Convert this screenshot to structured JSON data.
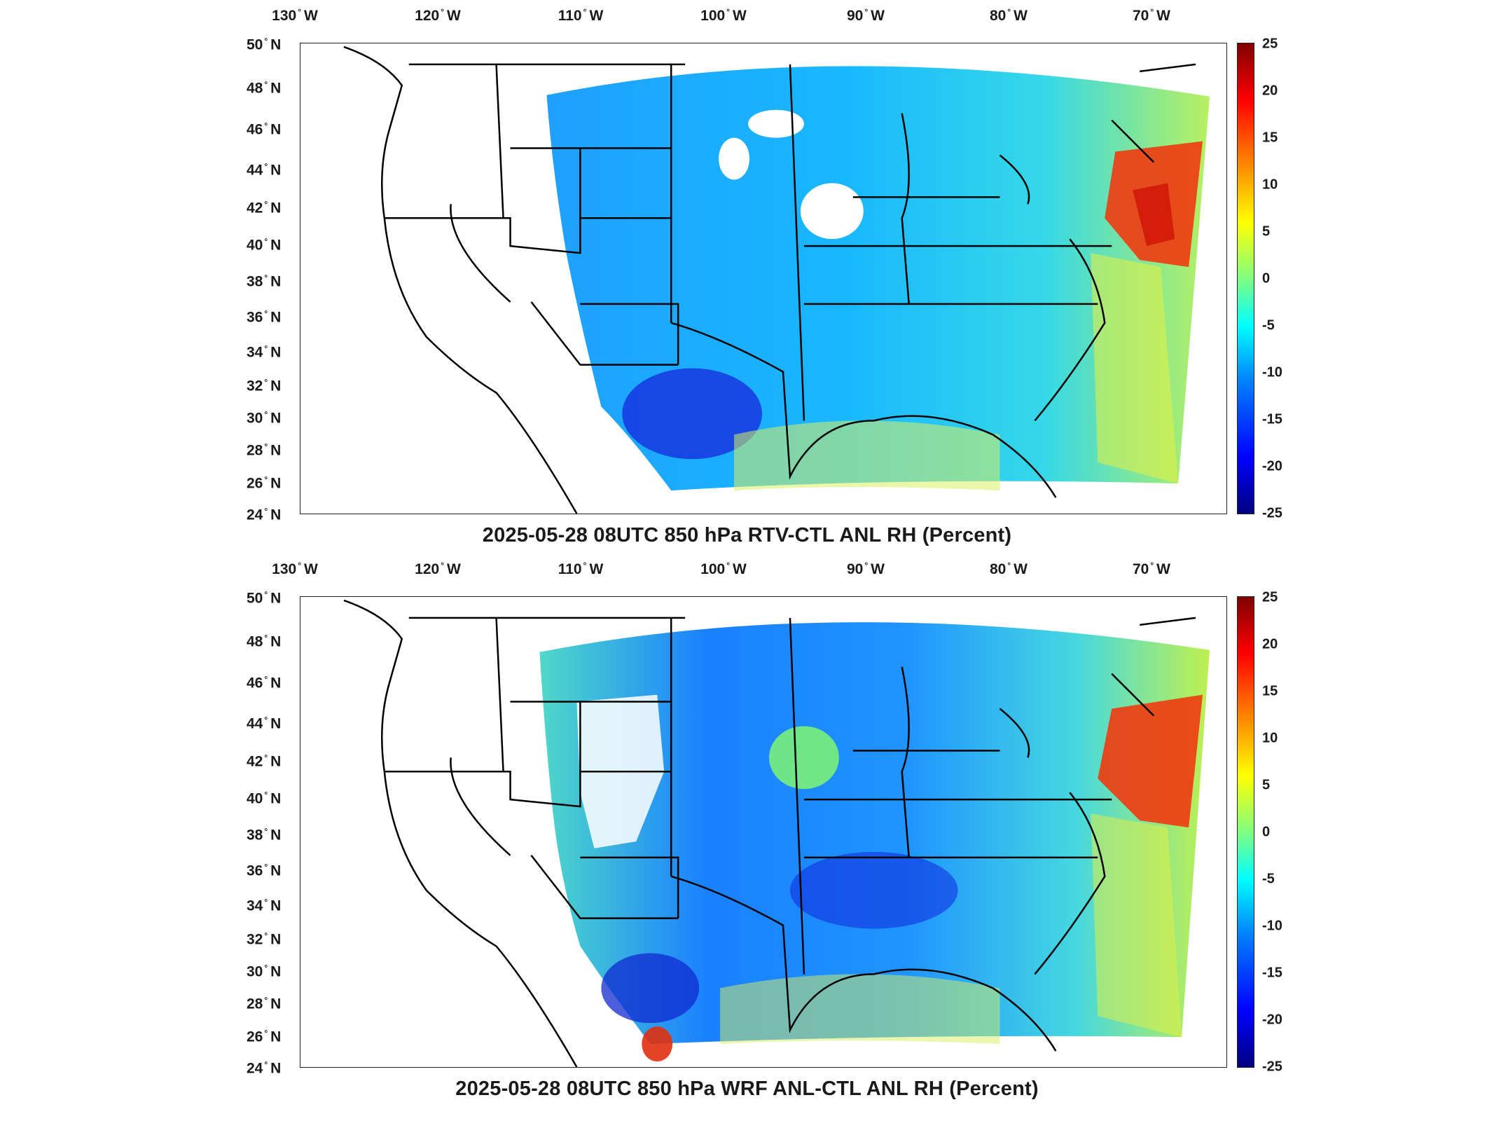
{
  "lon_labels": [
    {
      "deg": "130",
      "hemi": "W"
    },
    {
      "deg": "120",
      "hemi": "W"
    },
    {
      "deg": "110",
      "hemi": "W"
    },
    {
      "deg": "100",
      "hemi": "W"
    },
    {
      "deg": "90",
      "hemi": "W"
    },
    {
      "deg": "80",
      "hemi": "W"
    },
    {
      "deg": "70",
      "hemi": "W"
    }
  ],
  "lat_labels": [
    {
      "deg": "50",
      "hemi": "N"
    },
    {
      "deg": "48",
      "hemi": "N"
    },
    {
      "deg": "46",
      "hemi": "N"
    },
    {
      "deg": "44",
      "hemi": "N"
    },
    {
      "deg": "42",
      "hemi": "N"
    },
    {
      "deg": "40",
      "hemi": "N"
    },
    {
      "deg": "38",
      "hemi": "N"
    },
    {
      "deg": "36",
      "hemi": "N"
    },
    {
      "deg": "34",
      "hemi": "N"
    },
    {
      "deg": "32",
      "hemi": "N"
    },
    {
      "deg": "30",
      "hemi": "N"
    },
    {
      "deg": "28",
      "hemi": "N"
    },
    {
      "deg": "26",
      "hemi": "N"
    },
    {
      "deg": "24",
      "hemi": "N"
    }
  ],
  "colorbar_ticks": [
    "25",
    "20",
    "15",
    "10",
    "5",
    "0",
    "-5",
    "-10",
    "-15",
    "-20",
    "-25"
  ],
  "colors": {
    "cmap": [
      "#000080",
      "#0000ff",
      "#0080ff",
      "#00ffff",
      "#80ff80",
      "#ffff00",
      "#ff8000",
      "#ff0000",
      "#800000"
    ]
  },
  "panels": [
    {
      "title": "2025-05-28 08UTC 850 hPa RTV-CTL ANL RH (Percent)"
    },
    {
      "title": "2025-05-28 08UTC 850 hPa WRF ANL-CTL ANL RH (Percent)"
    }
  ]
}
